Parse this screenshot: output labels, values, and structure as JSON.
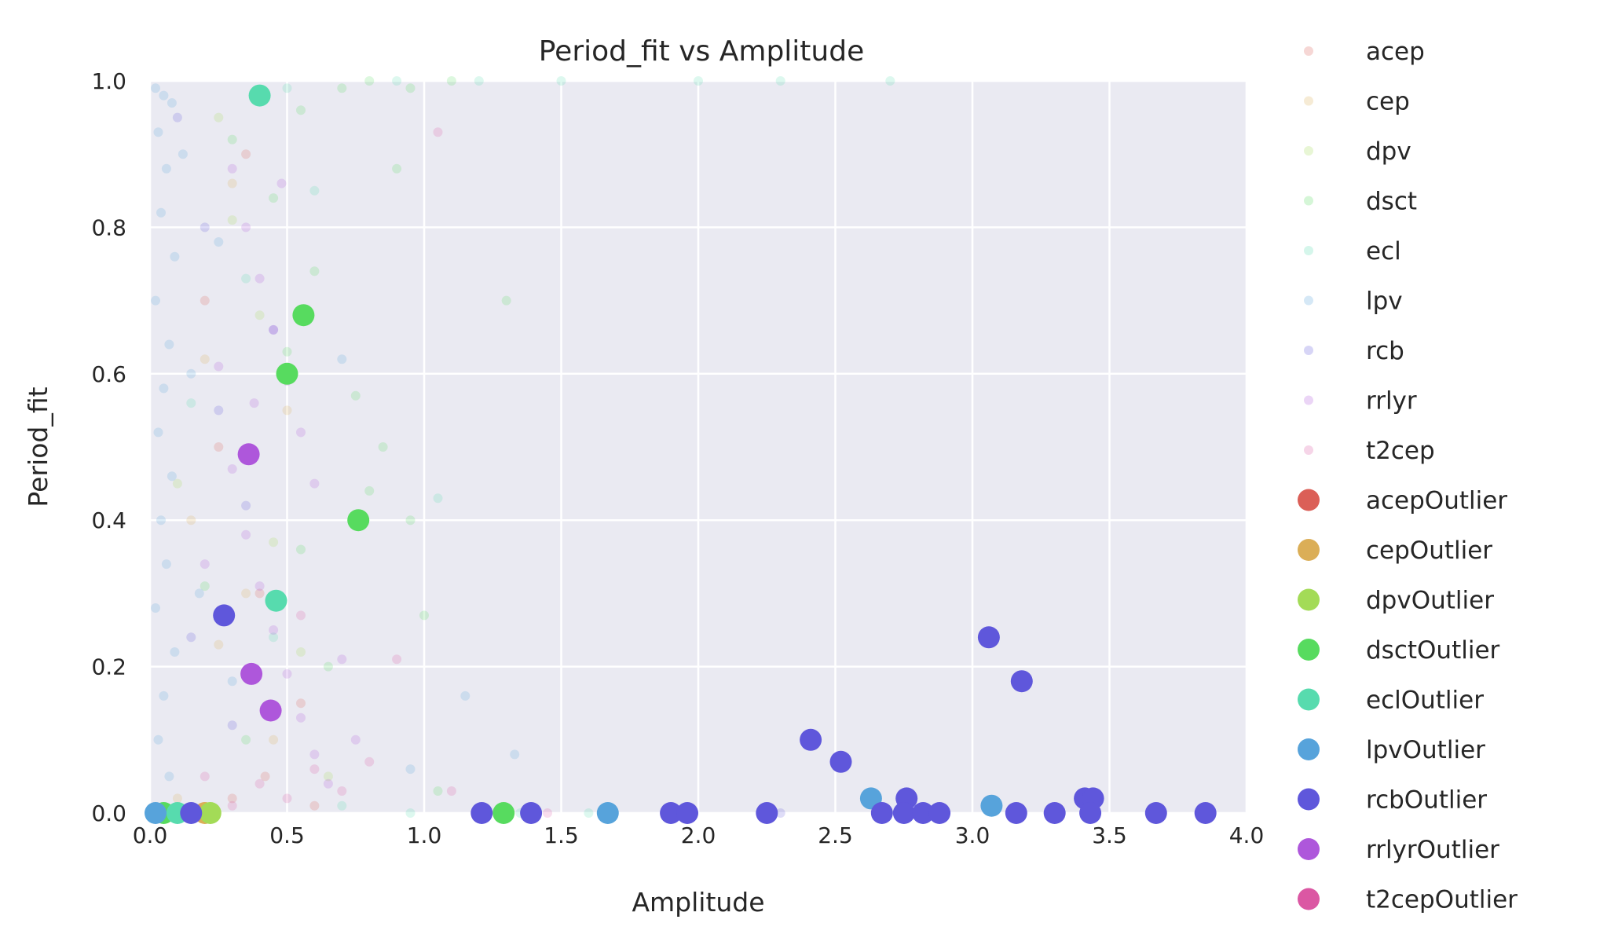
{
  "chart_data": {
    "type": "scatter",
    "title": "Period_fit vs Amplitude",
    "xlabel": "Amplitude",
    "ylabel": "Period_fit",
    "xlim": [
      0.0,
      4.0
    ],
    "ylim": [
      0.0,
      1.0
    ],
    "xticks": [
      "0.0",
      "0.5",
      "1.0",
      "1.5",
      "2.0",
      "2.5",
      "3.0",
      "3.5",
      "4.0"
    ],
    "yticks": [
      "0.0",
      "0.2",
      "0.4",
      "0.6",
      "0.8",
      "1.0"
    ],
    "grid": true,
    "background": "#eaeaf2",
    "legend_position": "outside-right",
    "series": [
      {
        "name": "acep",
        "color": "#db5f57",
        "alpha": 0.2,
        "marker": "small",
        "points": [
          [
            0.35,
            0.9
          ],
          [
            0.42,
            0.05
          ],
          [
            0.3,
            0.02
          ],
          [
            0.55,
            0.15
          ],
          [
            0.25,
            0.5
          ],
          [
            0.4,
            0.3
          ],
          [
            0.2,
            0.7
          ],
          [
            0.6,
            0.01
          ]
        ]
      },
      {
        "name": "cep",
        "color": "#dbae57",
        "alpha": 0.2,
        "marker": "small",
        "points": [
          [
            0.3,
            0.86
          ],
          [
            0.2,
            0.62
          ],
          [
            0.35,
            0.3
          ],
          [
            0.1,
            0.02
          ],
          [
            0.45,
            0.1
          ],
          [
            0.25,
            0.23
          ],
          [
            0.5,
            0.55
          ],
          [
            0.15,
            0.4
          ]
        ]
      },
      {
        "name": "dpv",
        "color": "#a3db57",
        "alpha": 0.2,
        "marker": "small",
        "points": [
          [
            0.25,
            0.95
          ],
          [
            0.4,
            0.68
          ],
          [
            0.1,
            0.45
          ],
          [
            0.55,
            0.22
          ],
          [
            0.65,
            0.05
          ],
          [
            0.3,
            0.81
          ],
          [
            0.45,
            0.37
          ]
        ]
      },
      {
        "name": "dsct",
        "color": "#57db5f",
        "alpha": 0.2,
        "marker": "small",
        "points": [
          [
            0.4,
            0.98
          ],
          [
            0.55,
            0.96
          ],
          [
            0.7,
            0.99
          ],
          [
            0.8,
            1.0
          ],
          [
            0.95,
            0.99
          ],
          [
            1.1,
            1.0
          ],
          [
            1.3,
            0.7
          ],
          [
            0.9,
            0.88
          ],
          [
            0.75,
            0.57
          ],
          [
            0.85,
            0.5
          ],
          [
            1.0,
            0.27
          ],
          [
            0.6,
            0.74
          ],
          [
            0.3,
            0.92
          ],
          [
            0.5,
            0.63
          ],
          [
            0.65,
            0.2
          ],
          [
            0.35,
            0.1
          ],
          [
            0.45,
            0.84
          ],
          [
            0.95,
            0.4
          ],
          [
            1.05,
            0.03
          ],
          [
            0.8,
            0.44
          ],
          [
            0.55,
            0.36
          ],
          [
            0.2,
            0.31
          ]
        ]
      },
      {
        "name": "ecl",
        "color": "#57dbae",
        "alpha": 0.2,
        "marker": "small",
        "points": [
          [
            0.5,
            0.99
          ],
          [
            0.9,
            1.0
          ],
          [
            1.2,
            1.0
          ],
          [
            1.5,
            1.0
          ],
          [
            2.0,
            1.0
          ],
          [
            2.3,
            1.0
          ],
          [
            2.7,
            1.0
          ],
          [
            1.05,
            0.43
          ],
          [
            0.6,
            0.85
          ],
          [
            0.35,
            0.73
          ],
          [
            0.7,
            0.01
          ],
          [
            0.95,
            0.0
          ],
          [
            1.35,
            0.0
          ],
          [
            1.6,
            0.0
          ],
          [
            0.15,
            0.56
          ],
          [
            0.45,
            0.24
          ]
        ]
      },
      {
        "name": "lpv",
        "color": "#57a3db",
        "alpha": 0.2,
        "marker": "small",
        "points": [
          [
            0.02,
            0.99
          ],
          [
            0.05,
            0.98
          ],
          [
            0.08,
            0.97
          ],
          [
            0.03,
            0.93
          ],
          [
            0.06,
            0.88
          ],
          [
            0.04,
            0.82
          ],
          [
            0.09,
            0.76
          ],
          [
            0.02,
            0.7
          ],
          [
            0.07,
            0.64
          ],
          [
            0.05,
            0.58
          ],
          [
            0.03,
            0.52
          ],
          [
            0.08,
            0.46
          ],
          [
            0.04,
            0.4
          ],
          [
            0.06,
            0.34
          ],
          [
            0.02,
            0.28
          ],
          [
            0.09,
            0.22
          ],
          [
            0.05,
            0.16
          ],
          [
            0.03,
            0.1
          ],
          [
            0.07,
            0.05
          ],
          [
            0.12,
            0.9
          ],
          [
            0.15,
            0.6
          ],
          [
            0.18,
            0.3
          ],
          [
            0.25,
            0.78
          ],
          [
            0.3,
            0.18
          ],
          [
            1.15,
            0.16
          ],
          [
            1.33,
            0.08
          ],
          [
            0.95,
            0.06
          ],
          [
            0.7,
            0.62
          ]
        ]
      },
      {
        "name": "rcb",
        "color": "#5f57db",
        "alpha": 0.2,
        "marker": "small",
        "points": [
          [
            0.1,
            0.95
          ],
          [
            0.2,
            0.8
          ],
          [
            0.25,
            0.55
          ],
          [
            0.35,
            0.42
          ],
          [
            0.3,
            0.12
          ],
          [
            2.3,
            0.0
          ],
          [
            0.45,
            0.66
          ],
          [
            0.15,
            0.24
          ]
        ]
      },
      {
        "name": "rrlyr",
        "color": "#ae57db",
        "alpha": 0.2,
        "marker": "small",
        "points": [
          [
            0.3,
            0.88
          ],
          [
            0.35,
            0.8
          ],
          [
            0.4,
            0.73
          ],
          [
            0.45,
            0.66
          ],
          [
            0.5,
            0.59
          ],
          [
            0.55,
            0.52
          ],
          [
            0.6,
            0.45
          ],
          [
            0.35,
            0.38
          ],
          [
            0.4,
            0.31
          ],
          [
            0.45,
            0.25
          ],
          [
            0.5,
            0.19
          ],
          [
            0.55,
            0.13
          ],
          [
            0.6,
            0.08
          ],
          [
            0.65,
            0.04
          ],
          [
            0.25,
            0.61
          ],
          [
            0.3,
            0.47
          ],
          [
            0.2,
            0.34
          ],
          [
            0.7,
            0.21
          ],
          [
            0.75,
            0.1
          ],
          [
            0.38,
            0.56
          ],
          [
            0.48,
            0.86
          ]
        ]
      },
      {
        "name": "t2cep",
        "color": "#db57a3",
        "alpha": 0.2,
        "marker": "small",
        "points": [
          [
            1.05,
            0.93
          ],
          [
            0.9,
            0.21
          ],
          [
            0.4,
            0.04
          ],
          [
            0.5,
            0.02
          ],
          [
            0.6,
            0.06
          ],
          [
            0.3,
            0.01
          ],
          [
            0.7,
            0.03
          ],
          [
            0.2,
            0.05
          ],
          [
            0.8,
            0.07
          ],
          [
            1.1,
            0.03
          ],
          [
            1.45,
            0.0
          ],
          [
            0.55,
            0.27
          ]
        ]
      },
      {
        "name": "acepOutlier",
        "color": "#db5f57",
        "alpha": 1.0,
        "marker": "large",
        "points": []
      },
      {
        "name": "cepOutlier",
        "color": "#dbae57",
        "alpha": 1.0,
        "marker": "large",
        "points": [
          [
            0.2,
            0.0
          ]
        ]
      },
      {
        "name": "dpvOutlier",
        "color": "#a3db57",
        "alpha": 1.0,
        "marker": "large",
        "points": [
          [
            0.22,
            0.0
          ]
        ]
      },
      {
        "name": "dsctOutlier",
        "color": "#57db5f",
        "alpha": 1.0,
        "marker": "large",
        "points": [
          [
            0.56,
            0.68
          ],
          [
            0.5,
            0.6
          ],
          [
            0.76,
            0.4
          ],
          [
            1.29,
            0.0
          ],
          [
            0.05,
            0.0
          ]
        ]
      },
      {
        "name": "eclOutlier",
        "color": "#57dbae",
        "alpha": 1.0,
        "marker": "large",
        "points": [
          [
            0.4,
            0.98
          ],
          [
            0.46,
            0.29
          ],
          [
            0.1,
            0.0
          ]
        ]
      },
      {
        "name": "lpvOutlier",
        "color": "#57a3db",
        "alpha": 1.0,
        "marker": "large",
        "points": [
          [
            1.67,
            0.0
          ],
          [
            2.63,
            0.02
          ],
          [
            3.07,
            0.01
          ],
          [
            0.02,
            0.0
          ]
        ]
      },
      {
        "name": "rcbOutlier",
        "color": "#5f57db",
        "alpha": 1.0,
        "marker": "large",
        "points": [
          [
            0.27,
            0.27
          ],
          [
            3.06,
            0.24
          ],
          [
            3.18,
            0.18
          ],
          [
            2.41,
            0.1
          ],
          [
            2.52,
            0.07
          ],
          [
            2.76,
            0.02
          ],
          [
            3.41,
            0.02
          ],
          [
            3.44,
            0.02
          ],
          [
            0.15,
            0.0
          ],
          [
            1.21,
            0.0
          ],
          [
            1.39,
            0.0
          ],
          [
            1.9,
            0.0
          ],
          [
            1.96,
            0.0
          ],
          [
            2.25,
            0.0
          ],
          [
            2.67,
            0.0
          ],
          [
            2.75,
            0.0
          ],
          [
            2.82,
            0.0
          ],
          [
            2.88,
            0.0
          ],
          [
            3.16,
            0.0
          ],
          [
            3.3,
            0.0
          ],
          [
            3.43,
            0.0
          ],
          [
            3.67,
            0.0
          ],
          [
            3.85,
            0.0
          ]
        ]
      },
      {
        "name": "rrlyrOutlier",
        "color": "#ae57db",
        "alpha": 1.0,
        "marker": "large",
        "points": [
          [
            0.36,
            0.49
          ],
          [
            0.37,
            0.19
          ],
          [
            0.44,
            0.14
          ]
        ]
      },
      {
        "name": "t2cepOutlier",
        "color": "#db57a3",
        "alpha": 1.0,
        "marker": "large",
        "points": []
      }
    ]
  }
}
